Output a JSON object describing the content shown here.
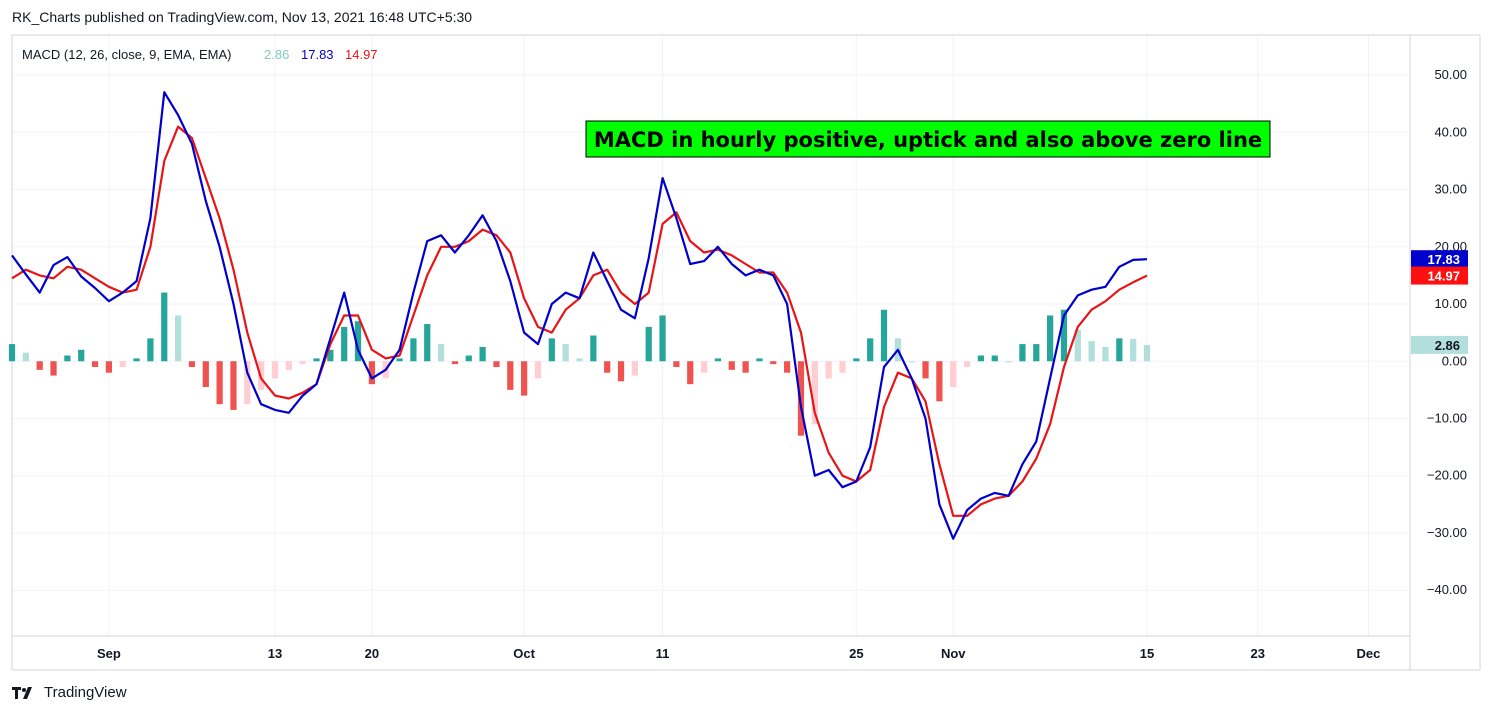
{
  "header": {
    "publish_text": "RK_Charts published on TradingView.com, Nov 13, 2021 16:48 UTC+5:30"
  },
  "footer": {
    "brand": "TradingView"
  },
  "colors": {
    "macd_line": "#0000cc",
    "signal_line": "#e81416",
    "hist_pos_strong": "#26a69a",
    "hist_pos_weak": "#b2dfdb",
    "hist_neg_strong": "#ef5350",
    "hist_neg_weak": "#ffcdd2",
    "annotation_bg": "#00ff00",
    "grid": "#f0f3fa"
  },
  "chart_data": {
    "type": "line",
    "indicator_label": "MACD (12, 26, close, 9, EMA, EMA)",
    "legend_values": {
      "histogram": "2.86",
      "macd": "17.83",
      "signal": "14.97"
    },
    "annotation": "MACD in hourly positive, uptick and also above zero line",
    "ylim": [
      -48,
      57
    ],
    "y_ticks": [
      "50.00",
      "40.00",
      "30.00",
      "20.00",
      "10.00",
      "0.00",
      "−10.00",
      "−20.00",
      "−30.00",
      "−40.00"
    ],
    "y_tick_values": [
      50,
      40,
      30,
      20,
      10,
      0,
      -10,
      -20,
      -30,
      -40
    ],
    "x_ticks": [
      "Sep",
      "13",
      "20",
      "Oct",
      "11",
      "25",
      "Nov",
      "15",
      "23",
      "Dec"
    ],
    "x_tick_dates": [
      "2021-09-01",
      "2021-09-13",
      "2021-09-20",
      "2021-10-01",
      "2021-10-11",
      "2021-10-25",
      "2021-11-01",
      "2021-11-15",
      "2021-11-23",
      "2021-12-01"
    ],
    "x_range": [
      "2021-08-25",
      "2021-12-04"
    ],
    "grid": true,
    "price_labels": [
      {
        "name": "macd",
        "value": 17.83,
        "text": "17.83"
      },
      {
        "name": "signal",
        "value": 14.97,
        "text": "14.97"
      },
      {
        "name": "histogram",
        "value": 2.86,
        "text": "2.86"
      }
    ],
    "series": [
      {
        "name": "MACD",
        "x": [
          "2021-08-25",
          "2021-08-26",
          "2021-08-27",
          "2021-08-28",
          "2021-08-29",
          "2021-08-30",
          "2021-08-31",
          "2021-09-01",
          "2021-09-02",
          "2021-09-03",
          "2021-09-04",
          "2021-09-05",
          "2021-09-06",
          "2021-09-07",
          "2021-09-08",
          "2021-09-09",
          "2021-09-10",
          "2021-09-11",
          "2021-09-12",
          "2021-09-13",
          "2021-09-14",
          "2021-09-15",
          "2021-09-16",
          "2021-09-17",
          "2021-09-18",
          "2021-09-19",
          "2021-09-20",
          "2021-09-21",
          "2021-09-22",
          "2021-09-23",
          "2021-09-24",
          "2021-09-25",
          "2021-09-26",
          "2021-09-27",
          "2021-09-28",
          "2021-09-29",
          "2021-09-30",
          "2021-10-01",
          "2021-10-02",
          "2021-10-03",
          "2021-10-04",
          "2021-10-05",
          "2021-10-06",
          "2021-10-07",
          "2021-10-08",
          "2021-10-09",
          "2021-10-10",
          "2021-10-11",
          "2021-10-12",
          "2021-10-13",
          "2021-10-14",
          "2021-10-15",
          "2021-10-16",
          "2021-10-17",
          "2021-10-18",
          "2021-10-19",
          "2021-10-20",
          "2021-10-21",
          "2021-10-22",
          "2021-10-23",
          "2021-10-24",
          "2021-10-25",
          "2021-10-26",
          "2021-10-27",
          "2021-10-28",
          "2021-10-29",
          "2021-10-30",
          "2021-10-31",
          "2021-11-01",
          "2021-11-02",
          "2021-11-03",
          "2021-11-04",
          "2021-11-05",
          "2021-11-06",
          "2021-11-07",
          "2021-11-08",
          "2021-11-09",
          "2021-11-10",
          "2021-11-11",
          "2021-11-12",
          "2021-11-13",
          "2021-11-14",
          "2021-11-15"
        ],
        "values": [
          18.5,
          15.2,
          12.0,
          16.8,
          18.2,
          14.8,
          12.8,
          10.5,
          12.0,
          14.0,
          25.0,
          47.0,
          43.0,
          38.0,
          28.0,
          20.0,
          10.0,
          -2.0,
          -7.5,
          -8.5,
          -9.0,
          -6.0,
          -4.0,
          4.0,
          12.0,
          2.0,
          -3.0,
          -1.5,
          2.0,
          12.0,
          21.0,
          22.0,
          19.0,
          22.0,
          25.5,
          21.0,
          14.0,
          5.0,
          3.0,
          10.0,
          12.0,
          11.0,
          19.0,
          14.0,
          9.0,
          7.5,
          18.0,
          32.0,
          25.0,
          17.0,
          17.5,
          20.0,
          17.0,
          15.0,
          16.0,
          15.0,
          10.0,
          -8.0,
          -20.0,
          -19.0,
          -22.0,
          -21.0,
          -15.0,
          -1.0,
          2.0,
          -3.0,
          -10.0,
          -25.0,
          -31.0,
          -26.0,
          -24.0,
          -23.0,
          -23.5,
          -18.0,
          -14.0,
          -3.0,
          8.0,
          11.5,
          12.5,
          13.0,
          16.5,
          17.7,
          17.83
        ]
      },
      {
        "name": "Signal",
        "x": [
          "2021-08-25",
          "2021-08-26",
          "2021-08-27",
          "2021-08-28",
          "2021-08-29",
          "2021-08-30",
          "2021-08-31",
          "2021-09-01",
          "2021-09-02",
          "2021-09-03",
          "2021-09-04",
          "2021-09-05",
          "2021-09-06",
          "2021-09-07",
          "2021-09-08",
          "2021-09-09",
          "2021-09-10",
          "2021-09-11",
          "2021-09-12",
          "2021-09-13",
          "2021-09-14",
          "2021-09-15",
          "2021-09-16",
          "2021-09-17",
          "2021-09-18",
          "2021-09-19",
          "2021-09-20",
          "2021-09-21",
          "2021-09-22",
          "2021-09-23",
          "2021-09-24",
          "2021-09-25",
          "2021-09-26",
          "2021-09-27",
          "2021-09-28",
          "2021-09-29",
          "2021-09-30",
          "2021-10-01",
          "2021-10-02",
          "2021-10-03",
          "2021-10-04",
          "2021-10-05",
          "2021-10-06",
          "2021-10-07",
          "2021-10-08",
          "2021-10-09",
          "2021-10-10",
          "2021-10-11",
          "2021-10-12",
          "2021-10-13",
          "2021-10-14",
          "2021-10-15",
          "2021-10-16",
          "2021-10-17",
          "2021-10-18",
          "2021-10-19",
          "2021-10-20",
          "2021-10-21",
          "2021-10-22",
          "2021-10-23",
          "2021-10-24",
          "2021-10-25",
          "2021-10-26",
          "2021-10-27",
          "2021-10-28",
          "2021-10-29",
          "2021-10-30",
          "2021-10-31",
          "2021-11-01",
          "2021-11-02",
          "2021-11-03",
          "2021-11-04",
          "2021-11-05",
          "2021-11-06",
          "2021-11-07",
          "2021-11-08",
          "2021-11-09",
          "2021-11-10",
          "2021-11-11",
          "2021-11-12",
          "2021-11-13",
          "2021-11-14",
          "2021-11-15"
        ],
        "values": [
          14.5,
          16.0,
          15.0,
          14.5,
          16.5,
          16.0,
          14.5,
          13.0,
          12.0,
          12.5,
          20.0,
          35.0,
          41.0,
          39.0,
          32.0,
          25.0,
          16.0,
          5.0,
          -3.0,
          -6.0,
          -6.5,
          -5.5,
          -4.0,
          3.0,
          8.0,
          8.0,
          2.0,
          0.5,
          1.0,
          8.0,
          15.0,
          20.0,
          20.0,
          21.0,
          23.0,
          22.0,
          19.0,
          11.0,
          6.0,
          5.0,
          9.0,
          11.0,
          15.0,
          16.0,
          12.0,
          10.0,
          12.0,
          24.0,
          26.0,
          21.0,
          19.0,
          19.5,
          18.5,
          17.0,
          15.5,
          15.5,
          12.0,
          5.0,
          -9.0,
          -16.0,
          -20.0,
          -21.0,
          -19.0,
          -8.0,
          -2.0,
          -3.0,
          -7.0,
          -18.0,
          -27.0,
          -27.0,
          -25.0,
          -24.0,
          -23.5,
          -21.0,
          -17.0,
          -11.0,
          -1.0,
          6.0,
          9.0,
          10.5,
          12.5,
          13.8,
          14.97
        ]
      },
      {
        "name": "Histogram",
        "x": [
          "2021-08-25",
          "2021-08-26",
          "2021-08-27",
          "2021-08-28",
          "2021-08-29",
          "2021-08-30",
          "2021-08-31",
          "2021-09-01",
          "2021-09-02",
          "2021-09-03",
          "2021-09-04",
          "2021-09-05",
          "2021-09-06",
          "2021-09-07",
          "2021-09-08",
          "2021-09-09",
          "2021-09-10",
          "2021-09-11",
          "2021-09-12",
          "2021-09-13",
          "2021-09-14",
          "2021-09-15",
          "2021-09-16",
          "2021-09-17",
          "2021-09-18",
          "2021-09-19",
          "2021-09-20",
          "2021-09-21",
          "2021-09-22",
          "2021-09-23",
          "2021-09-24",
          "2021-09-25",
          "2021-09-26",
          "2021-09-27",
          "2021-09-28",
          "2021-09-29",
          "2021-09-30",
          "2021-10-01",
          "2021-10-02",
          "2021-10-03",
          "2021-10-04",
          "2021-10-05",
          "2021-10-06",
          "2021-10-07",
          "2021-10-08",
          "2021-10-09",
          "2021-10-10",
          "2021-10-11",
          "2021-10-12",
          "2021-10-13",
          "2021-10-14",
          "2021-10-15",
          "2021-10-16",
          "2021-10-17",
          "2021-10-18",
          "2021-10-19",
          "2021-10-20",
          "2021-10-21",
          "2021-10-22",
          "2021-10-23",
          "2021-10-24",
          "2021-10-25",
          "2021-10-26",
          "2021-10-27",
          "2021-10-28",
          "2021-10-29",
          "2021-10-30",
          "2021-10-31",
          "2021-11-01",
          "2021-11-02",
          "2021-11-03",
          "2021-11-04",
          "2021-11-05",
          "2021-11-06",
          "2021-11-07",
          "2021-11-08",
          "2021-11-09",
          "2021-11-10",
          "2021-11-11",
          "2021-11-12",
          "2021-11-13",
          "2021-11-14",
          "2021-11-15"
        ],
        "values": [
          3.0,
          1.5,
          -1.5,
          -2.5,
          1.0,
          2.0,
          -1.0,
          -2.0,
          -1.0,
          0.5,
          4.0,
          12.0,
          8.0,
          -1.0,
          -4.5,
          -7.5,
          -8.5,
          -7.5,
          -5.0,
          -3.0,
          -1.5,
          -0.5,
          0.5,
          2.0,
          6.0,
          7.0,
          -4.0,
          -3.0,
          0.5,
          4.0,
          6.5,
          3.0,
          -0.5,
          1.0,
          2.5,
          -1.0,
          -5.0,
          -6.0,
          -3.0,
          4.0,
          3.0,
          0.5,
          4.5,
          -2.0,
          -3.5,
          -2.5,
          6.0,
          8.0,
          -1.0,
          -4.0,
          -2.0,
          0.5,
          -1.5,
          -2.0,
          0.5,
          -0.5,
          -2.0,
          -13.0,
          -11.0,
          -3.0,
          -2.0,
          0.5,
          4.0,
          9.0,
          4.0,
          0.0,
          -3.0,
          -7.0,
          -4.5,
          -1.0,
          1.0,
          1.0,
          0.0,
          3.0,
          3.0,
          8.0,
          9.0,
          5.5,
          3.5,
          2.5,
          4.0,
          3.9,
          2.86
        ]
      }
    ]
  }
}
